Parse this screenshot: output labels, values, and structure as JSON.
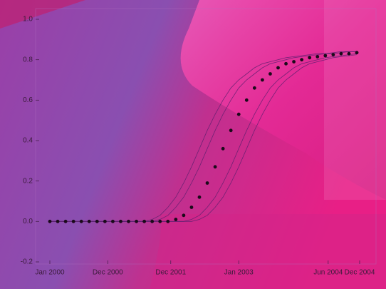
{
  "chart_data": {
    "type": "line",
    "x": [
      2000,
      2000.125,
      2000.25,
      2000.375,
      2000.5,
      2000.625,
      2000.75,
      2000.875,
      2001,
      2001.125,
      2001.25,
      2001.375,
      2001.5,
      2001.625,
      2001.75,
      2001.875,
      2002,
      2002.125,
      2002.25,
      2002.375,
      2002.5,
      2002.625,
      2002.75,
      2002.875,
      2003,
      2003.125,
      2003.25,
      2003.375,
      2003.5,
      2003.625,
      2003.75,
      2003.875,
      2004,
      2004.125,
      2004.25,
      2004.375,
      2004.5,
      2004.625,
      2004.75,
      2004.875
    ],
    "series": [
      {
        "color": "#5a1f6e",
        "style": "line",
        "values": [
          0,
          0,
          0,
          0,
          0,
          0,
          0,
          0,
          0,
          0,
          0,
          0,
          0,
          0.01,
          0.03,
          0.07,
          0.12,
          0.19,
          0.27,
          0.36,
          0.45,
          0.53,
          0.6,
          0.66,
          0.7,
          0.73,
          0.76,
          0.78,
          0.79,
          0.8,
          0.81,
          0.815,
          0.82,
          0.825,
          0.83,
          0.83,
          0.835,
          0.84,
          0.84,
          0.84
        ]
      },
      {
        "color": "#5a1f6e",
        "style": "line",
        "values": [
          0,
          0,
          0,
          0,
          0,
          0,
          0,
          0,
          0,
          0,
          0,
          0,
          0,
          0,
          0.01,
          0.03,
          0.07,
          0.12,
          0.19,
          0.27,
          0.36,
          0.45,
          0.53,
          0.6,
          0.66,
          0.7,
          0.73,
          0.76,
          0.78,
          0.79,
          0.8,
          0.81,
          0.815,
          0.82,
          0.825,
          0.83,
          0.83,
          0.835,
          0.84,
          0.84
        ]
      },
      {
        "color": "#5a1f6e",
        "style": "line",
        "values": [
          0,
          0,
          0,
          0,
          0,
          0,
          0,
          0,
          0,
          0,
          0,
          0,
          0,
          0,
          0,
          0,
          0,
          0,
          0.01,
          0.03,
          0.07,
          0.12,
          0.19,
          0.27,
          0.36,
          0.45,
          0.53,
          0.6,
          0.66,
          0.7,
          0.73,
          0.76,
          0.78,
          0.79,
          0.8,
          0.81,
          0.815,
          0.82,
          0.825,
          0.83
        ]
      },
      {
        "color": "#5a1f6e",
        "style": "line",
        "values": [
          0,
          0,
          0,
          0,
          0,
          0,
          0,
          0,
          0,
          0,
          0,
          0,
          0,
          0,
          0,
          0,
          0,
          0,
          0,
          0.01,
          0.03,
          0.07,
          0.12,
          0.19,
          0.27,
          0.36,
          0.45,
          0.53,
          0.6,
          0.66,
          0.7,
          0.73,
          0.76,
          0.78,
          0.79,
          0.8,
          0.81,
          0.815,
          0.82,
          0.825
        ]
      },
      {
        "color": "#1a0a1a",
        "style": "dots",
        "values": [
          0,
          0,
          0,
          0,
          0,
          0,
          0,
          0,
          0,
          0,
          0,
          0,
          0,
          0,
          0,
          0,
          0.01,
          0.03,
          0.07,
          0.12,
          0.19,
          0.27,
          0.36,
          0.45,
          0.53,
          0.6,
          0.66,
          0.7,
          0.73,
          0.76,
          0.78,
          0.79,
          0.8,
          0.81,
          0.815,
          0.82,
          0.825,
          0.83,
          0.83,
          0.835
        ]
      }
    ],
    "xlim": [
      2000,
      2004.92
    ],
    "xticks": [
      {
        "value": 2000,
        "label": "Jan 2000"
      },
      {
        "value": 2000.92,
        "label": "Dec 2000"
      },
      {
        "value": 2001.92,
        "label": "Dec 2001"
      },
      {
        "value": 2003,
        "label": "Jan 2003"
      },
      {
        "value": 2004.42,
        "label": "Jun 2004"
      },
      {
        "value": 2004.92,
        "label": "Dec 2004"
      }
    ],
    "ylim": [
      -0.2,
      1.0
    ],
    "yticks": [
      -0.2,
      {
        "value": 0,
        "label": "0.0"
      },
      0.2,
      0.4,
      0.6,
      0.8,
      {
        "value": 1.0,
        "label": "1.0"
      }
    ]
  }
}
